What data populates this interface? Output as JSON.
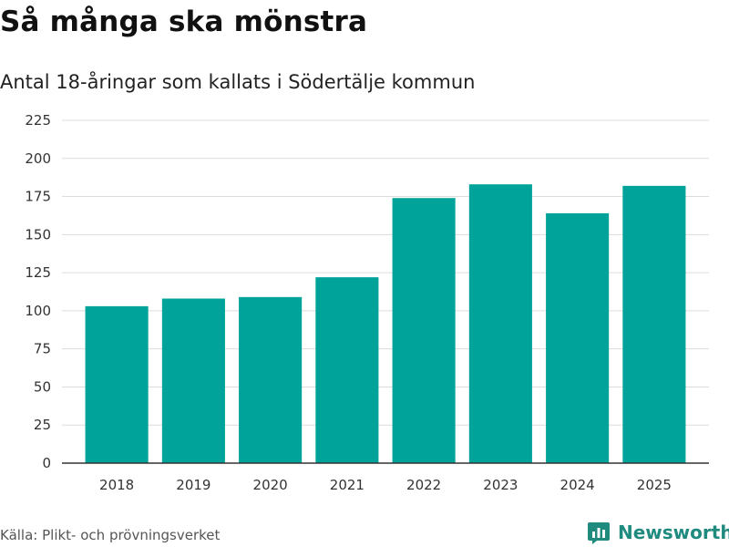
{
  "chart_data": {
    "type": "bar",
    "title": "Så många ska mönstra",
    "subtitle": "Antal 18-åringar som kallats i Södertälje kommun",
    "categories": [
      "2018",
      "2019",
      "2020",
      "2021",
      "2022",
      "2023",
      "2024",
      "2025"
    ],
    "values": [
      103,
      108,
      109,
      122,
      174,
      183,
      164,
      182
    ],
    "xlabel": "",
    "ylabel": "",
    "ylim": [
      0,
      225
    ],
    "yticks": [
      0,
      25,
      50,
      75,
      100,
      125,
      150,
      175,
      200,
      225
    ],
    "grid": true,
    "bar_color": "#00a39a",
    "source": "Källa: Plikt- och prövningsverket"
  },
  "brand": {
    "name": "Newsworthy",
    "color": "#1f8a7e",
    "icon": "newsworthy-logo-icon"
  }
}
